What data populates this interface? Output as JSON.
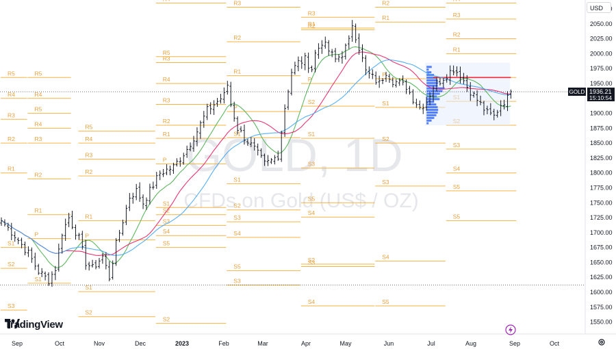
{
  "header": {
    "currency": "USD"
  },
  "brand": {
    "name": "TradingView"
  },
  "watermark": {
    "title": "GOLD, 1D",
    "subtitle": "CFDs on Gold (US$ / OZ)"
  },
  "price_tag": {
    "symbol": "GOLD",
    "price": "1936.21",
    "countdown": "15:10:54"
  },
  "icons": {
    "logo": "tradingview-logo-icon",
    "bolt": "lightning-bolt-icon",
    "settings": "gear-icon"
  },
  "colors": {
    "pivot": "#f5a623",
    "pivot_label": "#e8a13f",
    "ma_fast": "#4caf50",
    "ma_mid": "#e91e63",
    "ma_slow": "#42a5f5",
    "candle": "#131722",
    "price_tag_bg": "#131722",
    "red_level": "#f23645",
    "volume_profile": "#2962ff"
  },
  "chart_data": {
    "type": "candlestick",
    "symbol": "GOLD",
    "interval": "1D",
    "ylim": [
      1530,
      2090
    ],
    "y_ticks": [
      1550,
      1575,
      1600,
      1625,
      1650,
      1675,
      1700,
      1725,
      1750,
      1775,
      1800,
      1825,
      1850,
      1875,
      1900,
      1925,
      1950,
      1975,
      2000,
      2025,
      2050,
      2075
    ],
    "x_ticks": [
      "Sep",
      "Oct",
      "Nov",
      "Dec",
      "2023",
      "Feb",
      "Mar",
      "Apr",
      "May",
      "Jun",
      "Jul",
      "Aug",
      "Sep",
      "Oct"
    ],
    "last_price": 1936.21,
    "dotted_levels": [
      1936.21,
      1612
    ],
    "red_level": 1960,
    "close_anchors": [
      [
        0,
        1720
      ],
      [
        4,
        1695
      ],
      [
        8,
        1665
      ],
      [
        11,
        1635
      ],
      [
        14,
        1620
      ],
      [
        16,
        1640
      ],
      [
        18,
        1700
      ],
      [
        20,
        1725
      ],
      [
        23,
        1690
      ],
      [
        25,
        1650
      ],
      [
        27,
        1640
      ],
      [
        30,
        1660
      ],
      [
        32,
        1625
      ],
      [
        34,
        1680
      ],
      [
        35,
        1700
      ],
      [
        38,
        1760
      ],
      [
        40,
        1770
      ],
      [
        42,
        1750
      ],
      [
        45,
        1780
      ],
      [
        47,
        1800
      ],
      [
        51,
        1810
      ],
      [
        53,
        1825
      ],
      [
        55,
        1840
      ],
      [
        58,
        1870
      ],
      [
        61,
        1905
      ],
      [
        64,
        1920
      ],
      [
        66,
        1930
      ],
      [
        67,
        1948
      ],
      [
        68,
        1915
      ],
      [
        70,
        1875
      ],
      [
        72,
        1860
      ],
      [
        75,
        1840
      ],
      [
        78,
        1815
      ],
      [
        80,
        1820
      ],
      [
        82,
        1830
      ],
      [
        84,
        1910
      ],
      [
        86,
        1970
      ],
      [
        88,
        1985
      ],
      [
        90,
        1990
      ],
      [
        92,
        1975
      ],
      [
        93,
        2000
      ],
      [
        95,
        2020
      ],
      [
        97,
        2005
      ],
      [
        99,
        1990
      ],
      [
        101,
        2000
      ],
      [
        103,
        2020
      ],
      [
        104,
        2050
      ],
      [
        106,
        2010
      ],
      [
        108,
        1970
      ],
      [
        110,
        1960
      ],
      [
        112,
        1950
      ],
      [
        114,
        1970
      ],
      [
        116,
        1955
      ],
      [
        118,
        1950
      ],
      [
        120,
        1945
      ],
      [
        122,
        1925
      ],
      [
        124,
        1910
      ],
      [
        126,
        1920
      ],
      [
        128,
        1945
      ],
      [
        130,
        1955
      ],
      [
        132,
        1965
      ],
      [
        134,
        1975
      ],
      [
        136,
        1965
      ],
      [
        138,
        1945
      ],
      [
        140,
        1930
      ],
      [
        142,
        1915
      ],
      [
        144,
        1900
      ],
      [
        146,
        1895
      ],
      [
        148,
        1915
      ],
      [
        150,
        1925
      ],
      [
        151,
        1936.21
      ]
    ],
    "moving_averages": [
      {
        "color": "#4caf50",
        "period": 10
      },
      {
        "color": "#e91e63",
        "period": 20
      },
      {
        "color": "#42a5f5",
        "period": 30
      }
    ],
    "pivot_periods": [
      {
        "x_start": 0,
        "x_end": 7,
        "levels": [
          [
            "R5",
            1960
          ],
          [
            "R4",
            1925
          ],
          [
            "R3",
            1890
          ],
          [
            "R2",
            1850
          ],
          [
            "R1",
            1800
          ],
          [
            "S1",
            1675
          ],
          [
            "S2",
            1640
          ],
          [
            "S3",
            1570
          ]
        ]
      },
      {
        "x_start": 8,
        "x_end": 20,
        "levels": [
          [
            "R5",
            1960
          ],
          [
            "R4",
            1925
          ],
          [
            "R5",
            1900
          ],
          [
            "R4",
            1875
          ],
          [
            "R3",
            1850
          ],
          [
            "R2",
            1790
          ],
          [
            "R1",
            1730
          ],
          [
            "P",
            1690
          ],
          [
            "S1",
            1615
          ]
        ]
      },
      {
        "x_start": 23,
        "x_end": 45,
        "levels": [
          [
            "R2",
            1795
          ],
          [
            "R1",
            1720
          ],
          [
            "P",
            1688
          ],
          [
            "S1",
            1601
          ],
          [
            "S2",
            1559
          ],
          [
            "R3",
            1823
          ],
          [
            "R4",
            1850
          ],
          [
            "R5",
            1870
          ]
        ]
      },
      {
        "x_start": 46,
        "x_end": 66,
        "levels": [
          [
            "R4",
            2085
          ],
          [
            "R3",
            1985
          ],
          [
            "R5",
            1995
          ],
          [
            "R4",
            1950
          ],
          [
            "R3",
            1915
          ],
          [
            "R2",
            1880
          ],
          [
            "R1",
            1858
          ],
          [
            "P",
            1815
          ],
          [
            "S1",
            1742
          ],
          [
            "S2",
            1730
          ],
          [
            "S3",
            1712
          ],
          [
            "S4",
            1695
          ],
          [
            "S5",
            1675
          ],
          [
            "S2",
            1548
          ]
        ]
      },
      {
        "x_start": 67,
        "x_end": 88,
        "levels": [
          [
            "R3",
            2078
          ],
          [
            "R2",
            2020
          ],
          [
            "R1",
            1963
          ],
          [
            "P",
            1903
          ],
          [
            "S1",
            1859
          ],
          [
            "S1",
            1782
          ],
          [
            "S2",
            1738
          ],
          [
            "S3",
            1718
          ],
          [
            "S4",
            1692
          ],
          [
            "S5",
            1636
          ],
          [
            "S3",
            1612
          ]
        ]
      },
      {
        "x_start": 89,
        "x_end": 110,
        "levels": [
          [
            "R3",
            2061
          ],
          [
            "R2",
            2040
          ],
          [
            "R1",
            2043
          ],
          [
            "P",
            1950
          ],
          [
            "S1",
            1858
          ],
          [
            "S2",
            1912
          ],
          [
            "S3",
            1808
          ],
          [
            "S4",
            1726
          ],
          [
            "S5",
            1750
          ],
          [
            "S2",
            1647
          ],
          [
            "S3",
            1643
          ],
          [
            "S4",
            1577
          ]
        ]
      },
      {
        "x_start": 111,
        "x_end": 131,
        "levels": [
          [
            "R2",
            2078
          ],
          [
            "R1",
            2053
          ],
          [
            "P",
            1958
          ],
          [
            "S1",
            1910
          ],
          [
            "S2",
            1850
          ],
          [
            "S3",
            1778
          ],
          [
            "S4",
            1652
          ],
          [
            "S5",
            1577
          ]
        ]
      },
      {
        "x_start": 132,
        "x_end": 152,
        "levels": [
          [
            "R4",
            2085
          ],
          [
            "R3",
            2058
          ],
          [
            "R2",
            2025
          ],
          [
            "R1",
            2000
          ],
          [
            "P",
            1960
          ],
          [
            "S1",
            1920
          ],
          [
            "S2",
            1880
          ],
          [
            "S3",
            1840
          ],
          [
            "S4",
            1800
          ],
          [
            "S5",
            1770
          ],
          [
            "S5",
            1720
          ]
        ]
      }
    ]
  }
}
